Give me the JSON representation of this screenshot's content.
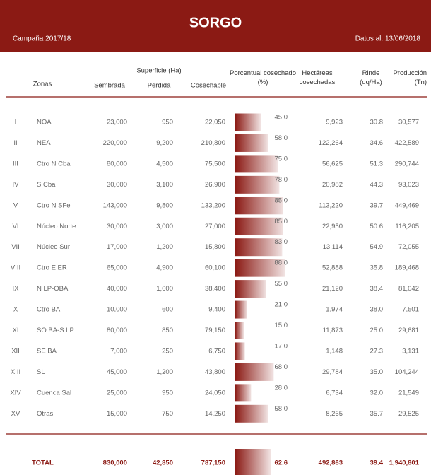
{
  "header": {
    "title": "SORGO",
    "campaign": "Campaña 2017/18",
    "date": "Datos al: 13/06/2018"
  },
  "table": {
    "columns": {
      "zonas": "Zonas",
      "superficie": "Superficie (Ha)",
      "sembrada": "Sembrada",
      "perdida": "Perdida",
      "cosechable": "Cosechable",
      "pct": "Porcentual cosechado (%)",
      "hectareas": "Hectáreas cosechadas",
      "rinde": "Rinde (qq/Ha)",
      "produccion": "Producción (Tn)"
    },
    "rows": [
      {
        "num": "I",
        "zona": "NOA",
        "sembrada": "23,000",
        "perdida": "950",
        "cosechable": "22,050",
        "pct": {
          "value": 45,
          "label": "45.0"
        },
        "hectareas": "9,923",
        "rinde": "30.8",
        "produccion": "30,577"
      },
      {
        "num": "II",
        "zona": "NEA",
        "sembrada": "220,000",
        "perdida": "9,200",
        "cosechable": "210,800",
        "pct": {
          "value": 58,
          "label": "58.0"
        },
        "hectareas": "122,264",
        "rinde": "34.6",
        "produccion": "422,589"
      },
      {
        "num": "III",
        "zona": "Ctro N Cba",
        "sembrada": "80,000",
        "perdida": "4,500",
        "cosechable": "75,500",
        "pct": {
          "value": 75,
          "label": "75.0"
        },
        "hectareas": "56,625",
        "rinde": "51.3",
        "produccion": "290,744"
      },
      {
        "num": "IV",
        "zona": "S Cba",
        "sembrada": "30,000",
        "perdida": "3,100",
        "cosechable": "26,900",
        "pct": {
          "value": 78,
          "label": "78.0"
        },
        "hectareas": "20,982",
        "rinde": "44.3",
        "produccion": "93,023"
      },
      {
        "num": "V",
        "zona": "Ctro N SFe",
        "sembrada": "143,000",
        "perdida": "9,800",
        "cosechable": "133,200",
        "pct": {
          "value": 85,
          "label": "85.0"
        },
        "hectareas": "113,220",
        "rinde": "39.7",
        "produccion": "449,469"
      },
      {
        "num": "VI",
        "zona": "Núcleo Norte",
        "sembrada": "30,000",
        "perdida": "3,000",
        "cosechable": "27,000",
        "pct": {
          "value": 85,
          "label": "85.0"
        },
        "hectareas": "22,950",
        "rinde": "50.6",
        "produccion": "116,205"
      },
      {
        "num": "VII",
        "zona": "Núcleo Sur",
        "sembrada": "17,000",
        "perdida": "1,200",
        "cosechable": "15,800",
        "pct": {
          "value": 83,
          "label": "83.0"
        },
        "hectareas": "13,114",
        "rinde": "54.9",
        "produccion": "72,055"
      },
      {
        "num": "VIII",
        "zona": "Ctro E ER",
        "sembrada": "65,000",
        "perdida": "4,900",
        "cosechable": "60,100",
        "pct": {
          "value": 88,
          "label": "88.0"
        },
        "hectareas": "52,888",
        "rinde": "35.8",
        "produccion": "189,468"
      },
      {
        "num": "IX",
        "zona": "N LP-OBA",
        "sembrada": "40,000",
        "perdida": "1,600",
        "cosechable": "38,400",
        "pct": {
          "value": 55,
          "label": "55.0"
        },
        "hectareas": "21,120",
        "rinde": "38.4",
        "produccion": "81,042"
      },
      {
        "num": "X",
        "zona": "Ctro BA",
        "sembrada": "10,000",
        "perdida": "600",
        "cosechable": "9,400",
        "pct": {
          "value": 21,
          "label": "21.0"
        },
        "hectareas": "1,974",
        "rinde": "38.0",
        "produccion": "7,501"
      },
      {
        "num": "XI",
        "zona": "SO BA-S LP",
        "sembrada": "80,000",
        "perdida": "850",
        "cosechable": "79,150",
        "pct": {
          "value": 15,
          "label": "15.0"
        },
        "hectareas": "11,873",
        "rinde": "25.0",
        "produccion": "29,681"
      },
      {
        "num": "XII",
        "zona": "SE BA",
        "sembrada": "7,000",
        "perdida": "250",
        "cosechable": "6,750",
        "pct": {
          "value": 17,
          "label": "17.0"
        },
        "hectareas": "1,148",
        "rinde": "27.3",
        "produccion": "3,131"
      },
      {
        "num": "XIII",
        "zona": "SL",
        "sembrada": "45,000",
        "perdida": "1,200",
        "cosechable": "43,800",
        "pct": {
          "value": 68,
          "label": "68.0"
        },
        "hectareas": "29,784",
        "rinde": "35.0",
        "produccion": "104,244"
      },
      {
        "num": "XIV",
        "zona": "Cuenca Sal",
        "sembrada": "25,000",
        "perdida": "950",
        "cosechable": "24,050",
        "pct": {
          "value": 28,
          "label": "28.0"
        },
        "hectareas": "6,734",
        "rinde": "32.0",
        "produccion": "21,549"
      },
      {
        "num": "XV",
        "zona": "Otras",
        "sembrada": "15,000",
        "perdida": "750",
        "cosechable": "14,250",
        "pct": {
          "value": 58,
          "label": "58.0"
        },
        "hectareas": "8,265",
        "rinde": "35.7",
        "produccion": "29,525"
      }
    ],
    "total": {
      "zona": "TOTAL",
      "sembrada": "830,000",
      "perdida": "42,850",
      "cosechable": "787,150",
      "pct": 62.6,
      "hectareas": "492,863",
      "rinde": "39.4",
      "produccion": "1,940,801"
    }
  }
}
